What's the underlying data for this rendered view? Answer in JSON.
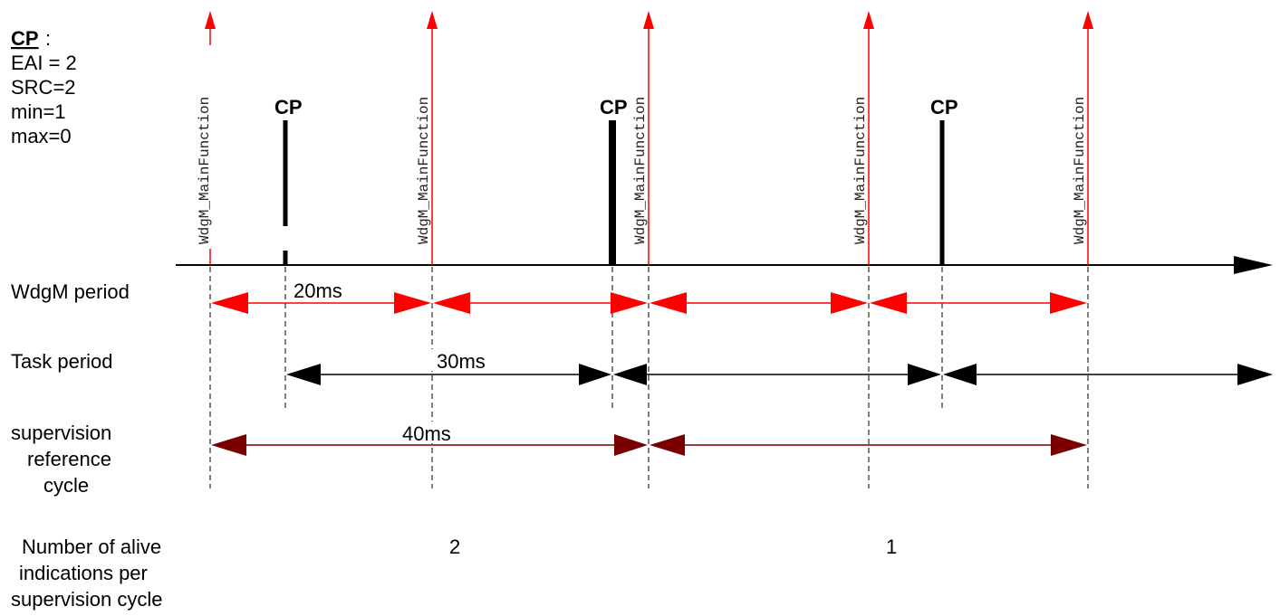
{
  "legend": {
    "title": "CP",
    "lines": [
      "EAI = 2",
      "SRC=2",
      "min=1",
      "max=0"
    ]
  },
  "main_function_label": "WdgM_MainFunction",
  "checkpoint_label": "CP",
  "rows": {
    "wdgm_period": "WdgM period",
    "task_period": "Task period",
    "supervision": [
      "supervision",
      "reference",
      "cycle"
    ],
    "alive": [
      "Number of alive",
      "indications per",
      "supervision cycle"
    ]
  },
  "durations": {
    "wdgm": "20ms",
    "task": "30ms",
    "supervision": "40ms"
  },
  "alive_counts": [
    "2",
    "1"
  ],
  "colors": {
    "main_function_arrow": "#ff0000",
    "wdgm_arrow": "#ff0000",
    "task_arrow": "#000000",
    "supervision_arrow": "#7a0000"
  }
}
